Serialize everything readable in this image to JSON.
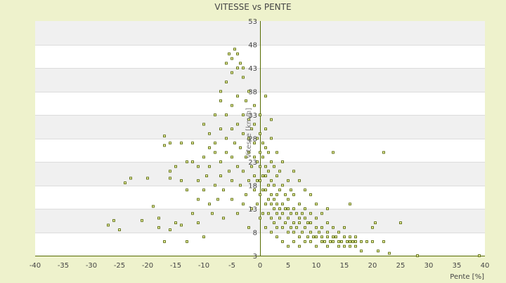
{
  "chart_data": {
    "type": "scatter",
    "title": "VITESSE vs PENTE",
    "xlabel": "Pente [%]",
    "ylabel": "Vitesse [km/h]",
    "xlim": [
      -40,
      40
    ],
    "ylim": [
      3,
      53
    ],
    "x_ticks": [
      -40,
      -35,
      -30,
      -25,
      -20,
      -15,
      -10,
      -5,
      0,
      5,
      10,
      15,
      20,
      25,
      30,
      35,
      40
    ],
    "y_ticks": [
      3,
      8,
      13,
      18,
      23,
      28,
      33,
      38,
      43,
      48,
      53
    ],
    "grid": "horizontal alternating bands",
    "legend": "none",
    "colors": {
      "background": "#eef2cc",
      "plot_band_light": "#ffffff",
      "plot_band_dark": "#f0f0f0",
      "axis": "#556b00",
      "marker_fill": "#e8ef9a",
      "marker_stroke": "#4d5e00",
      "text": "#444444"
    },
    "points": [
      [
        -27,
        9.5
      ],
      [
        -26,
        10.5
      ],
      [
        -25,
        8.5
      ],
      [
        -24,
        18.5
      ],
      [
        -23,
        19.5
      ],
      [
        -21,
        10.5
      ],
      [
        -20,
        19.5
      ],
      [
        -19,
        13.5
      ],
      [
        -18,
        11
      ],
      [
        -18,
        9
      ],
      [
        -17,
        6
      ],
      [
        -17,
        26.5
      ],
      [
        -17,
        28.5
      ],
      [
        -16,
        8.5
      ],
      [
        -16,
        19.5
      ],
      [
        -16,
        21
      ],
      [
        -16,
        27
      ],
      [
        -15,
        10
      ],
      [
        -15,
        22
      ],
      [
        -14,
        19
      ],
      [
        -14,
        9.5
      ],
      [
        -14,
        27
      ],
      [
        -13,
        23
      ],
      [
        -13,
        17
      ],
      [
        -13,
        6
      ],
      [
        -12,
        12
      ],
      [
        -12,
        23
      ],
      [
        -12,
        27
      ],
      [
        -11,
        15
      ],
      [
        -11,
        10
      ],
      [
        -11,
        19
      ],
      [
        -11,
        22
      ],
      [
        -10,
        17
      ],
      [
        -10,
        24
      ],
      [
        -10,
        31
      ],
      [
        -10,
        7
      ],
      [
        -9.5,
        20
      ],
      [
        -9,
        14
      ],
      [
        -9,
        22
      ],
      [
        -9,
        26
      ],
      [
        -9,
        29
      ],
      [
        -8.5,
        12
      ],
      [
        -8,
        18
      ],
      [
        -8,
        25
      ],
      [
        -8,
        33
      ],
      [
        -8,
        27
      ],
      [
        -7.5,
        15
      ],
      [
        -7,
        20
      ],
      [
        -7,
        23
      ],
      [
        -7,
        30
      ],
      [
        -7,
        36
      ],
      [
        -7,
        38
      ],
      [
        -6.5,
        11
      ],
      [
        -6.5,
        17
      ],
      [
        -6,
        25
      ],
      [
        -6,
        28
      ],
      [
        -6,
        33
      ],
      [
        -6,
        40
      ],
      [
        -6,
        44
      ],
      [
        -5.5,
        21
      ],
      [
        -5.5,
        46
      ],
      [
        -5,
        15
      ],
      [
        -5,
        19
      ],
      [
        -5,
        24
      ],
      [
        -5,
        30
      ],
      [
        -5,
        35
      ],
      [
        -5,
        42
      ],
      [
        -5,
        45
      ],
      [
        -4.5,
        47
      ],
      [
        -4.5,
        27
      ],
      [
        -4,
        12
      ],
      [
        -4,
        22
      ],
      [
        -4,
        31
      ],
      [
        -4,
        37
      ],
      [
        -4,
        43
      ],
      [
        -4,
        46
      ],
      [
        -3.5,
        18
      ],
      [
        -3.5,
        26
      ],
      [
        -3.5,
        44
      ],
      [
        -3,
        14
      ],
      [
        -3,
        21
      ],
      [
        -3,
        29
      ],
      [
        -3,
        33
      ],
      [
        -3,
        41
      ],
      [
        -3,
        43
      ],
      [
        -2.5,
        16
      ],
      [
        -2.5,
        24
      ],
      [
        -2.5,
        36
      ],
      [
        -2,
        9
      ],
      [
        -2,
        19
      ],
      [
        -2,
        25
      ],
      [
        -2,
        28
      ],
      [
        -2,
        32
      ],
      [
        -2,
        38
      ],
      [
        -1.5,
        13
      ],
      [
        -1.5,
        22
      ],
      [
        -1.5,
        30
      ],
      [
        -1,
        17
      ],
      [
        -1,
        20
      ],
      [
        -1,
        24
      ],
      [
        -1,
        27
      ],
      [
        -1,
        31
      ],
      [
        -1,
        35
      ],
      [
        -0.5,
        14
      ],
      [
        -0.5,
        19
      ],
      [
        -0.5,
        23
      ],
      [
        -0.5,
        28
      ],
      [
        0,
        11
      ],
      [
        0,
        16
      ],
      [
        0,
        19
      ],
      [
        0,
        22
      ],
      [
        0,
        25
      ],
      [
        0,
        29
      ],
      [
        0,
        33
      ],
      [
        0.5,
        12
      ],
      [
        0.5,
        17
      ],
      [
        0.5,
        20
      ],
      [
        0.5,
        24
      ],
      [
        0.5,
        27
      ],
      [
        1,
        9
      ],
      [
        1,
        14
      ],
      [
        1,
        17
      ],
      [
        1,
        20
      ],
      [
        1,
        22
      ],
      [
        1,
        26
      ],
      [
        1,
        30
      ],
      [
        1,
        37
      ],
      [
        1.5,
        12
      ],
      [
        1.5,
        15
      ],
      [
        1.5,
        18
      ],
      [
        1.5,
        21
      ],
      [
        1.5,
        25
      ],
      [
        2,
        8
      ],
      [
        2,
        11
      ],
      [
        2,
        14
      ],
      [
        2,
        16
      ],
      [
        2,
        19
      ],
      [
        2,
        23
      ],
      [
        2,
        28
      ],
      [
        2,
        32
      ],
      [
        2.5,
        10
      ],
      [
        2.5,
        13
      ],
      [
        2.5,
        15
      ],
      [
        2.5,
        18
      ],
      [
        2.5,
        22
      ],
      [
        3,
        7
      ],
      [
        3,
        9
      ],
      [
        3,
        12
      ],
      [
        3,
        14
      ],
      [
        3,
        16
      ],
      [
        3,
        20
      ],
      [
        3,
        25
      ],
      [
        3.5,
        11
      ],
      [
        3.5,
        13
      ],
      [
        3.5,
        17
      ],
      [
        3.5,
        21
      ],
      [
        4,
        6
      ],
      [
        4,
        9
      ],
      [
        4,
        12
      ],
      [
        4,
        14
      ],
      [
        4,
        18
      ],
      [
        4,
        23
      ],
      [
        4.5,
        10
      ],
      [
        4.5,
        13
      ],
      [
        4.5,
        16
      ],
      [
        5,
        5
      ],
      [
        5,
        8
      ],
      [
        5,
        11
      ],
      [
        5,
        13
      ],
      [
        5,
        15
      ],
      [
        5,
        19
      ],
      [
        5.5,
        9
      ],
      [
        5.5,
        12
      ],
      [
        5.5,
        17
      ],
      [
        6,
        6
      ],
      [
        6,
        8
      ],
      [
        6,
        10
      ],
      [
        6,
        13
      ],
      [
        6,
        16
      ],
      [
        6,
        21
      ],
      [
        6.5,
        9
      ],
      [
        6.5,
        12
      ],
      [
        7,
        5
      ],
      [
        7,
        7
      ],
      [
        7,
        10
      ],
      [
        7,
        11
      ],
      [
        7,
        14
      ],
      [
        7,
        19
      ],
      [
        7.5,
        8
      ],
      [
        7.5,
        12
      ],
      [
        8,
        6
      ],
      [
        8,
        9
      ],
      [
        8,
        11
      ],
      [
        8,
        13
      ],
      [
        8,
        17
      ],
      [
        8.5,
        7
      ],
      [
        8.5,
        10
      ],
      [
        9,
        6
      ],
      [
        9,
        8
      ],
      [
        9,
        10
      ],
      [
        9,
        12
      ],
      [
        9,
        16
      ],
      [
        9.5,
        7
      ],
      [
        10,
        5
      ],
      [
        10,
        7
      ],
      [
        10,
        9
      ],
      [
        10,
        11
      ],
      [
        10,
        14
      ],
      [
        10.5,
        8
      ],
      [
        11,
        6
      ],
      [
        11,
        7
      ],
      [
        11,
        9
      ],
      [
        11,
        12
      ],
      [
        11.5,
        6
      ],
      [
        12,
        5
      ],
      [
        12,
        7
      ],
      [
        12,
        8
      ],
      [
        12,
        10
      ],
      [
        12,
        13
      ],
      [
        12.5,
        6
      ],
      [
        13,
        6
      ],
      [
        13,
        7
      ],
      [
        13,
        9
      ],
      [
        13,
        25
      ],
      [
        13.5,
        7
      ],
      [
        14,
        5
      ],
      [
        14,
        6
      ],
      [
        14,
        8
      ],
      [
        14.5,
        6
      ],
      [
        15,
        5
      ],
      [
        15,
        7
      ],
      [
        15,
        9
      ],
      [
        15.5,
        6
      ],
      [
        16,
        5
      ],
      [
        16,
        6
      ],
      [
        16,
        7
      ],
      [
        16,
        14
      ],
      [
        16.5,
        6
      ],
      [
        17,
        5
      ],
      [
        17,
        6
      ],
      [
        17,
        7
      ],
      [
        18,
        4
      ],
      [
        18,
        6
      ],
      [
        19,
        6
      ],
      [
        20,
        9
      ],
      [
        20,
        6
      ],
      [
        20.5,
        10
      ],
      [
        21,
        4
      ],
      [
        22,
        6
      ],
      [
        22,
        25
      ],
      [
        23,
        3.5
      ],
      [
        25,
        10
      ],
      [
        28,
        3
      ],
      [
        39,
        3
      ]
    ]
  }
}
